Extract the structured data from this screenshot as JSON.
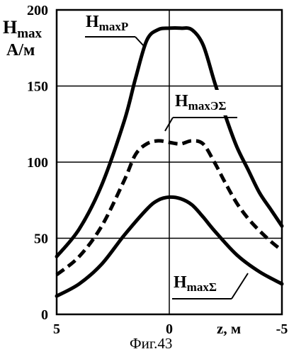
{
  "chart_data": {
    "type": "line",
    "ylabel": {
      "main": "H",
      "sub": "max",
      "unit": "А/м"
    },
    "xlabel": "z, м",
    "caption": "Фиг.43",
    "x_ticks": [
      "5",
      "0",
      "-5"
    ],
    "y_ticks": [
      "0",
      "50",
      "100",
      "150",
      "200"
    ],
    "xlim": [
      5,
      -5
    ],
    "ylim": [
      0,
      200
    ],
    "grid": true,
    "series": [
      {
        "name": "H_maxP",
        "label_main": "H",
        "label_sub": "maxP",
        "style": "solid",
        "x": [
          5,
          4,
          3,
          2,
          1.5,
          1,
          0.5,
          0,
          -0.5,
          -1,
          -1.5,
          -2,
          -2.5,
          -3,
          -3.5,
          -4,
          -4.5,
          -5
        ],
        "y": [
          38,
          56,
          85,
          127,
          155,
          180,
          187,
          188,
          188,
          187,
          177,
          153,
          130,
          110,
          95,
          80,
          69,
          58
        ]
      },
      {
        "name": "H_maxЭΣ",
        "label_main": "H",
        "label_sub": "maxЭΣ",
        "style": "dashed",
        "x": [
          5,
          4,
          3,
          2,
          1.5,
          1,
          0.5,
          0,
          -0.5,
          -1,
          -1.5,
          -2,
          -2.5,
          -3,
          -3.5,
          -4,
          -4.5,
          -5
        ],
        "y": [
          26,
          38,
          58,
          88,
          105,
          112,
          114,
          113,
          112,
          114,
          112,
          100,
          86,
          73,
          63,
          55,
          48,
          42
        ]
      },
      {
        "name": "H_maxΣ",
        "label_main": "H",
        "label_sub": "maxΣ",
        "style": "solid",
        "x": [
          5,
          4,
          3,
          2,
          1,
          0.5,
          0,
          -0.5,
          -1,
          -1.5,
          -2,
          -3,
          -4,
          -5
        ],
        "y": [
          12,
          20,
          33,
          52,
          69,
          75,
          77,
          76,
          72,
          64,
          55,
          39,
          28,
          20
        ]
      }
    ]
  }
}
